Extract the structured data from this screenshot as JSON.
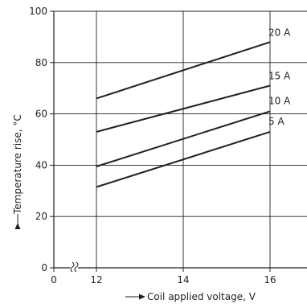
{
  "chart_data": {
    "type": "line",
    "title": "",
    "xlabel": "Coil applied voltage, V",
    "ylabel": "Temperature rise, °C",
    "x_ticks": [
      0,
      12,
      14,
      16
    ],
    "x_tick_labels": [
      "0",
      "12",
      "14",
      "16"
    ],
    "y_ticks": [
      0,
      20,
      40,
      60,
      80,
      100
    ],
    "y_tick_labels": [
      "0",
      "20",
      "40",
      "60",
      "80",
      "100"
    ],
    "ylim": [
      0,
      100
    ],
    "x_axis_break": true,
    "grid": true,
    "series": [
      {
        "name": "20 A",
        "x": [
          12,
          16
        ],
        "y": [
          66,
          88
        ]
      },
      {
        "name": "15 A",
        "x": [
          12,
          16
        ],
        "y": [
          53,
          71
        ]
      },
      {
        "name": "10 A",
        "x": [
          12,
          16
        ],
        "y": [
          39.5,
          61
        ]
      },
      {
        "name": "5 A",
        "x": [
          12,
          16
        ],
        "y": [
          31.5,
          53
        ]
      }
    ]
  }
}
